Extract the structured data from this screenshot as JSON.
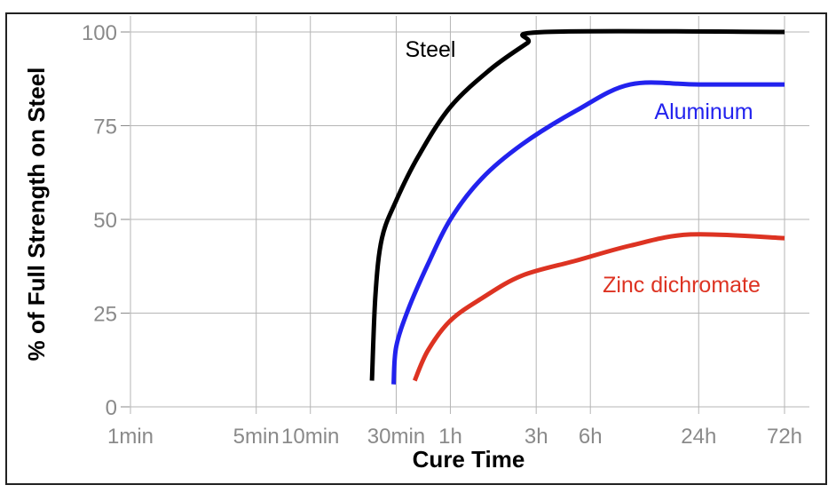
{
  "chart_data": {
    "type": "line",
    "xlabel": "Cure Time",
    "ylabel": "% of Full Strength on Steel",
    "x_scale": "log",
    "x_unit": "minutes",
    "x_ticks": [
      {
        "label": "1min",
        "value": 1
      },
      {
        "label": "5min",
        "value": 5
      },
      {
        "label": "10min",
        "value": 10
      },
      {
        "label": "30min",
        "value": 30
      },
      {
        "label": "1h",
        "value": 60
      },
      {
        "label": "3h",
        "value": 180
      },
      {
        "label": "6h",
        "value": 360
      },
      {
        "label": "24h",
        "value": 1440
      },
      {
        "label": "72h",
        "value": 4320
      }
    ],
    "y_ticks": [
      0,
      25,
      50,
      75,
      100
    ],
    "ylim": [
      0,
      100
    ],
    "grid": true,
    "series": [
      {
        "name": "Steel",
        "color": "#000000",
        "points": [
          [
            22,
            7
          ],
          [
            23,
            30
          ],
          [
            25,
            45
          ],
          [
            30,
            55
          ],
          [
            40,
            67
          ],
          [
            60,
            80
          ],
          [
            100,
            90
          ],
          [
            160,
            97
          ],
          [
            200,
            100
          ],
          [
            4320,
            100
          ]
        ]
      },
      {
        "name": "Aluminum",
        "color": "#2222ee",
        "points": [
          [
            29,
            6
          ],
          [
            30,
            16
          ],
          [
            35,
            26
          ],
          [
            45,
            38
          ],
          [
            60,
            50
          ],
          [
            90,
            61
          ],
          [
            150,
            70
          ],
          [
            300,
            79
          ],
          [
            600,
            86
          ],
          [
            1440,
            86
          ],
          [
            4320,
            86
          ]
        ]
      },
      {
        "name": "Zinc dichromate",
        "color": "#dd3322",
        "points": [
          [
            38,
            7
          ],
          [
            45,
            15
          ],
          [
            60,
            23
          ],
          [
            90,
            29
          ],
          [
            150,
            35
          ],
          [
            300,
            39
          ],
          [
            600,
            43
          ],
          [
            1300,
            46
          ],
          [
            4320,
            45
          ]
        ]
      }
    ]
  }
}
